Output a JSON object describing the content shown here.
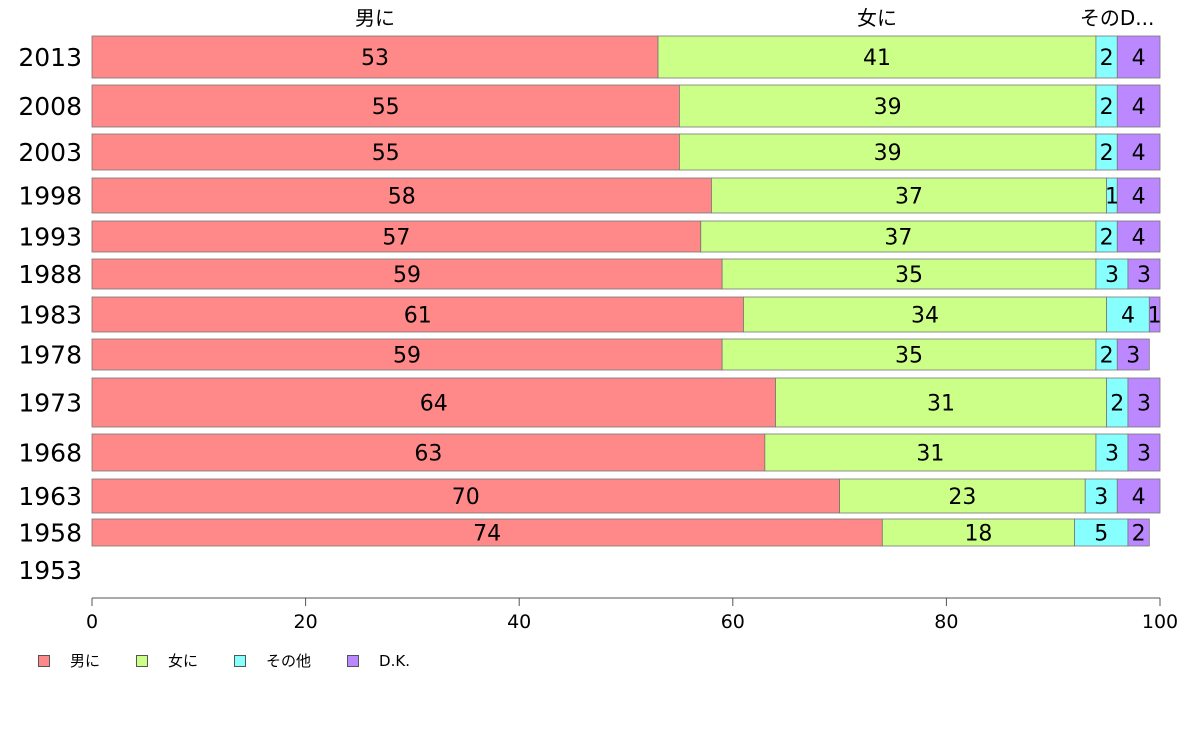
{
  "chart_data": {
    "type": "bar",
    "orientation": "horizontal",
    "stacked": true,
    "categories": [
      "2013",
      "2008",
      "2003",
      "1998",
      "1993",
      "1988",
      "1983",
      "1978",
      "1973",
      "1968",
      "1963",
      "1958",
      "1953"
    ],
    "series": [
      {
        "name": "男に",
        "top_label": "男に",
        "color": "#ff8888",
        "values": [
          53,
          55,
          55,
          58,
          57,
          59,
          61,
          59,
          64,
          63,
          70,
          74,
          null
        ]
      },
      {
        "name": "女に",
        "top_label": "女に",
        "color": "#ccff88",
        "values": [
          41,
          39,
          39,
          37,
          37,
          35,
          34,
          35,
          31,
          31,
          23,
          18,
          null
        ]
      },
      {
        "name": "その他",
        "top_label": "そのD...",
        "color": "#88ffff",
        "values": [
          2,
          2,
          2,
          1,
          2,
          3,
          4,
          2,
          2,
          3,
          3,
          5,
          null
        ]
      },
      {
        "name": "D.K.",
        "top_label": "",
        "color": "#bb88ff",
        "values": [
          4,
          4,
          4,
          4,
          4,
          3,
          1,
          3,
          3,
          3,
          4,
          2,
          null
        ]
      }
    ],
    "xlim": [
      0,
      100
    ],
    "xticks": [
      0,
      20,
      40,
      60,
      80,
      100
    ],
    "grid": false,
    "legend_position": "bottom-left"
  }
}
